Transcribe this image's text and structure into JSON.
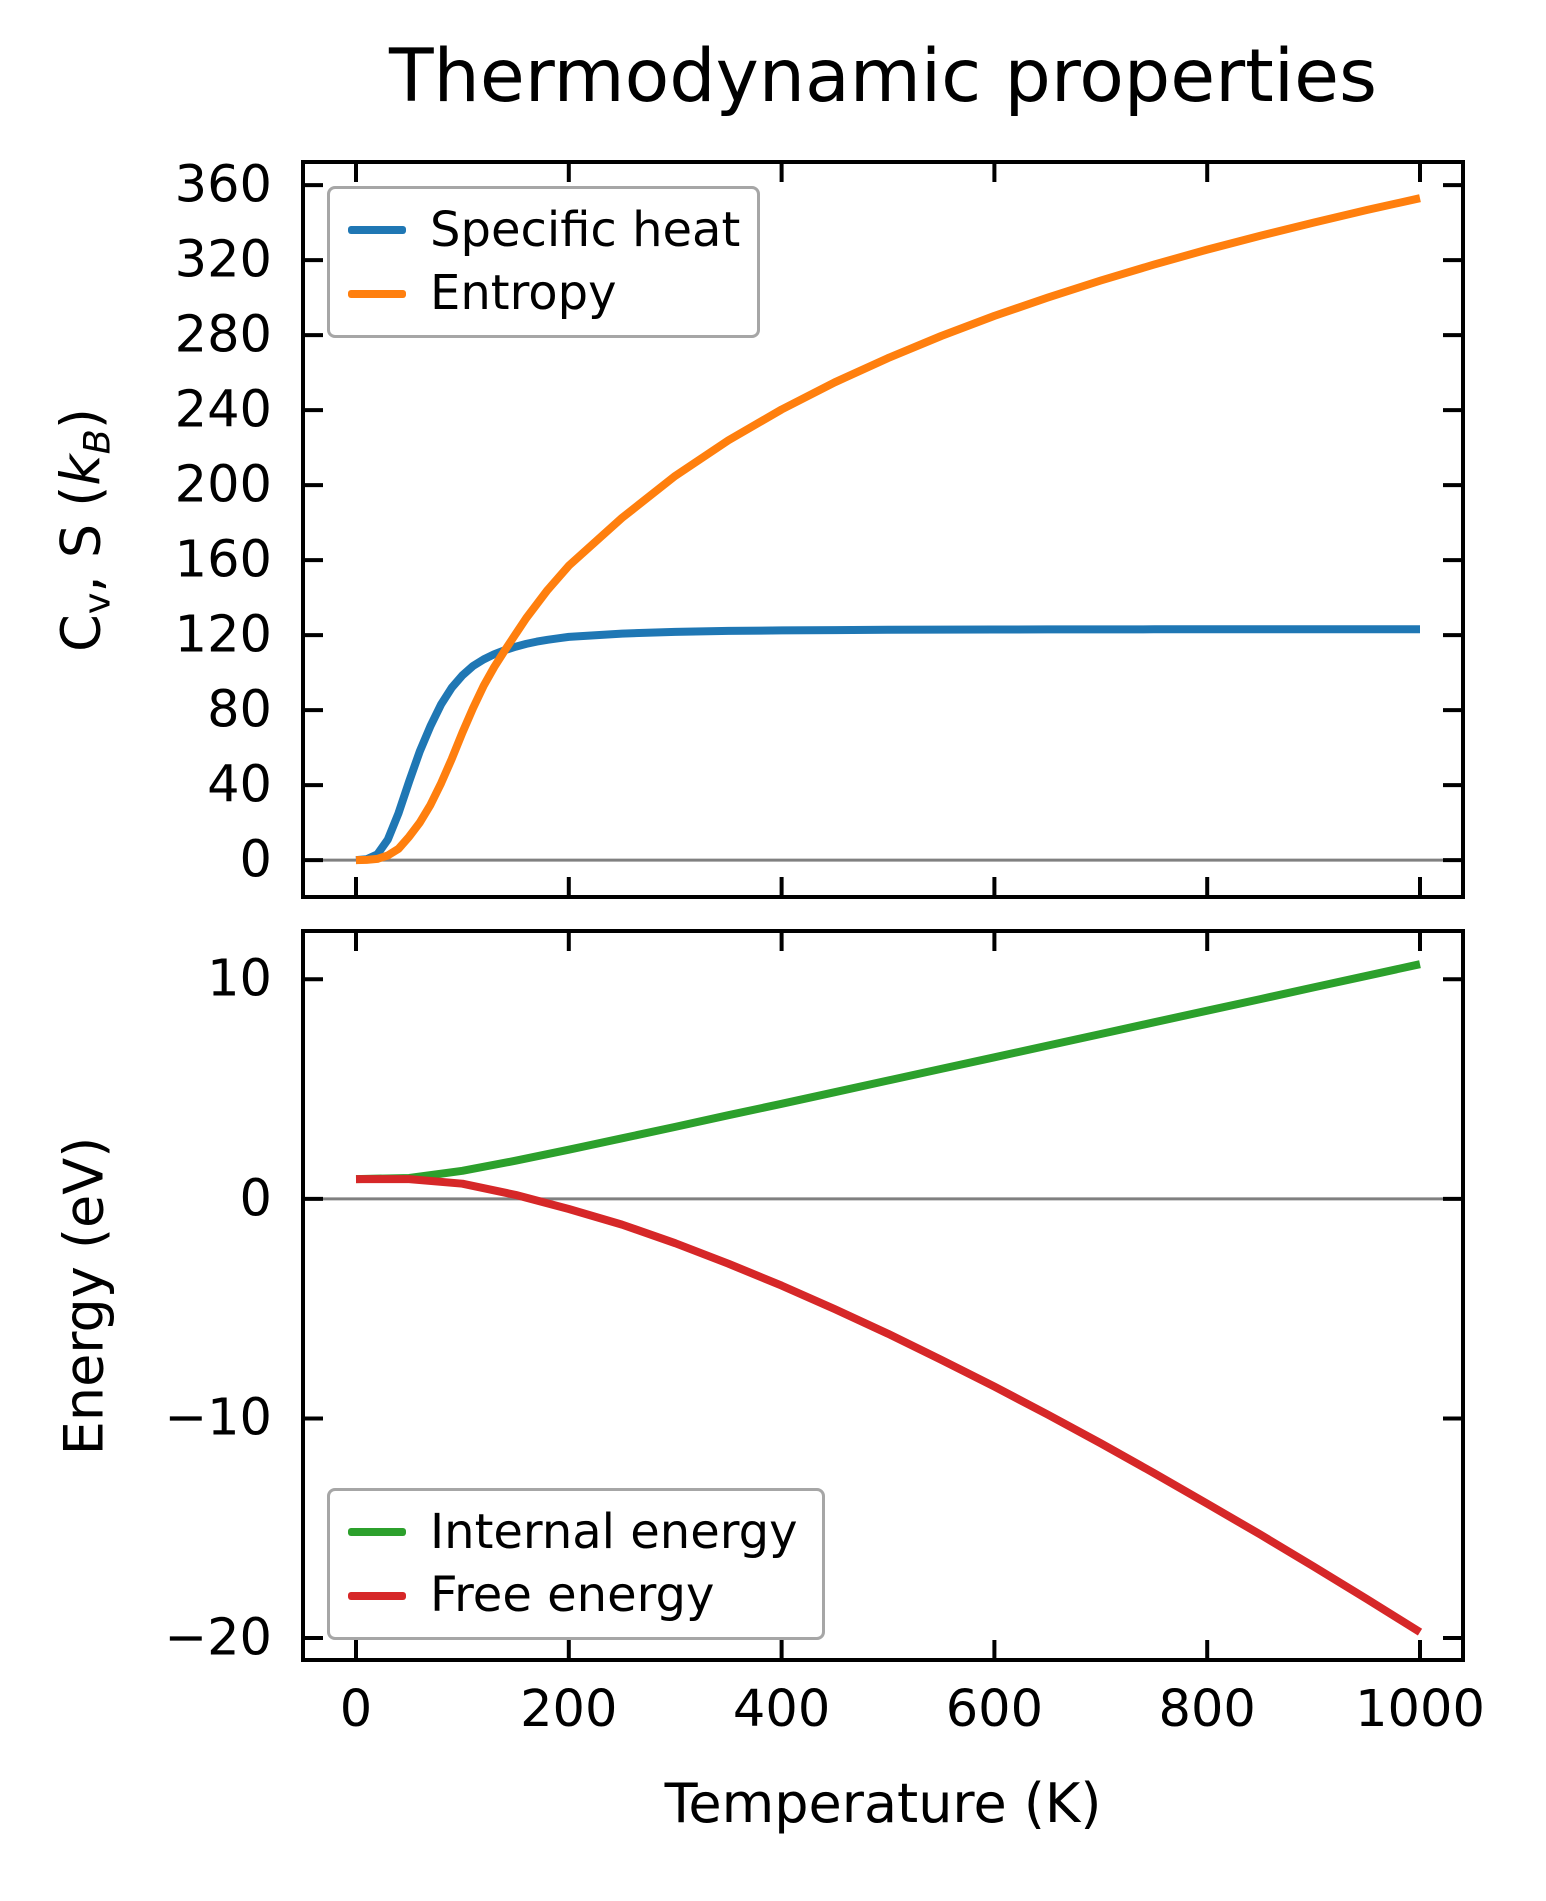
{
  "title": "Thermodynamic properties",
  "colors": {
    "specific_heat": "#1f77b4",
    "entropy": "#ff7f0e",
    "internal_energy": "#2ca02c",
    "free_energy": "#d62728",
    "zero_line": "#808080",
    "axis": "#000000",
    "legend_border": "#a6a6a6",
    "background": "#ffffff",
    "text": "#000000"
  },
  "top_ylabel_rich": [
    {
      "text": "C"
    },
    {
      "text": "v",
      "sub": true
    },
    {
      "text": ", S ("
    },
    {
      "text": "k",
      "italic": true
    },
    {
      "text": "B",
      "sub": true,
      "italic": true
    },
    {
      "text": ")"
    }
  ],
  "chart_data": [
    {
      "type": "line",
      "title": "Thermodynamic properties",
      "xlabel": "Temperature (K)",
      "ylabel": "Cv, S (kB)",
      "xlim": [
        -49.8,
        1040.4
      ],
      "ylim": [
        -19.7,
        372.3
      ],
      "xticks": [
        0,
        200,
        400,
        600,
        800,
        1000
      ],
      "show_xtick_labels": false,
      "yticks": [
        0,
        40,
        80,
        120,
        160,
        200,
        240,
        280,
        320,
        360
      ],
      "zero_line": 0,
      "grid": false,
      "legend_position": "upper left",
      "x": [
        0,
        10,
        20,
        30,
        40,
        50,
        60,
        70,
        80,
        90,
        100,
        110,
        120,
        130,
        140,
        150,
        160,
        170,
        180,
        190,
        200,
        250,
        300,
        350,
        400,
        450,
        500,
        550,
        600,
        650,
        700,
        750,
        800,
        850,
        900,
        950,
        1000
      ],
      "series": [
        {
          "name": "Specific heat",
          "color": "#1f77b4",
          "y": [
            0,
            0.4,
            3,
            11,
            25,
            42,
            58,
            71.5,
            83,
            92,
            98.5,
            103.5,
            107,
            109.8,
            112,
            113.8,
            115.3,
            116.5,
            117.5,
            118.3,
            119,
            120.8,
            121.7,
            122.2,
            122.5,
            122.65,
            122.8,
            122.9,
            122.95,
            123,
            123,
            123.05,
            123.05,
            123.1,
            123.1,
            123.1,
            123.1
          ]
        },
        {
          "name": "Entropy",
          "color": "#ff7f0e",
          "y": [
            0,
            0.1,
            0.6,
            2.5,
            6,
            12.5,
            20,
            29.5,
            41,
            54,
            68,
            81,
            93,
            103,
            112,
            120.5,
            129,
            136.5,
            144,
            150.5,
            157,
            182.5,
            204.9,
            223.9,
            240.3,
            254.8,
            267.7,
            279.5,
            290.2,
            300,
            309.1,
            317.6,
            325.6,
            333,
            340,
            346.7,
            353
          ]
        }
      ]
    },
    {
      "type": "line",
      "title": "",
      "xlabel": "Temperature (K)",
      "ylabel": "Energy (eV)",
      "xlim": [
        -49.8,
        1040.4
      ],
      "ylim": [
        -21.0,
        12.2
      ],
      "xticks": [
        0,
        200,
        400,
        600,
        800,
        1000
      ],
      "show_xtick_labels": true,
      "yticks": [
        -20,
        -10,
        0,
        10
      ],
      "zero_line": 0,
      "grid": false,
      "legend_position": "lower left",
      "x": [
        0,
        50,
        100,
        150,
        200,
        250,
        300,
        350,
        400,
        450,
        500,
        550,
        600,
        650,
        700,
        750,
        800,
        850,
        900,
        950,
        1000
      ],
      "series": [
        {
          "name": "Internal energy",
          "color": "#2ca02c",
          "y": [
            0.9,
            0.95,
            1.28,
            1.74,
            2.24,
            2.76,
            3.28,
            3.81,
            4.33,
            4.86,
            5.39,
            5.92,
            6.45,
            6.98,
            7.51,
            8.04,
            8.57,
            9.1,
            9.63,
            10.16,
            10.69
          ]
        },
        {
          "name": "Free energy",
          "color": "#d62728",
          "y": [
            0.9,
            0.9,
            0.69,
            0.18,
            -0.46,
            -1.17,
            -2.02,
            -2.95,
            -3.95,
            -5.02,
            -6.14,
            -7.33,
            -8.55,
            -9.82,
            -11.13,
            -12.49,
            -13.88,
            -15.29,
            -16.74,
            -18.22,
            -19.73
          ]
        }
      ]
    }
  ]
}
